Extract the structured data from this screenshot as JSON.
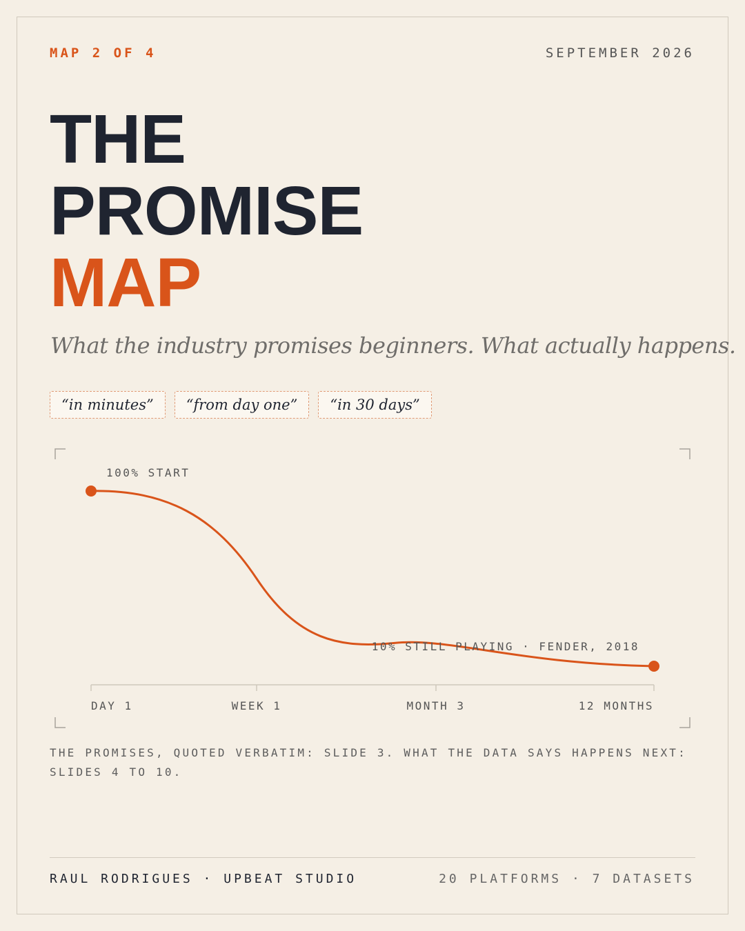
{
  "header": {
    "series_label": "MAP 2 OF 4",
    "date": "SEPTEMBER 2026"
  },
  "title": {
    "line1": "THE",
    "line2": "PROMISE",
    "line3": "MAP"
  },
  "subtitle": "What the industry promises beginners. What actually happens.",
  "promises": [
    "“in minutes”",
    "“from day one”",
    "“in 30 days”"
  ],
  "colors": {
    "accent": "#d9541a",
    "ink": "#1f2430",
    "background": "#f5efe5"
  },
  "chart_data": {
    "type": "line",
    "series": [
      {
        "x": [
          "DAY 1",
          "WEEK 1",
          "MONTH 3",
          "12 MONTHS"
        ],
        "values": [
          100,
          55,
          12,
          10
        ]
      }
    ],
    "x_ticks": [
      "DAY 1",
      "WEEK 1",
      "MONTH 3",
      "12 MONTHS"
    ],
    "ylim": [
      0,
      100
    ],
    "annotations": {
      "start": "100% START",
      "end": "10% STILL PLAYING · FENDER, 2018"
    },
    "grid": false
  },
  "caption": "THE PROMISES, QUOTED VERBATIM: SLIDE 3. WHAT THE DATA SAYS HAPPENS NEXT: SLIDES 4 TO 10.",
  "footer": {
    "author": "RAUL RODRIGUES · UPBEAT STUDIO",
    "stats": "20 PLATFORMS · 7 DATASETS"
  }
}
